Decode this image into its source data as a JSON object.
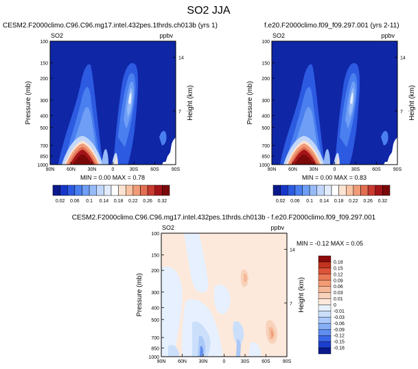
{
  "figure": {
    "title": "SO2 JJA"
  },
  "colors": {
    "blue_scale": [
      "#0a1a8c",
      "#1736c8",
      "#2c5ae0",
      "#4a7ff0",
      "#6e9ef5",
      "#97bbf8",
      "#c2d7fb",
      "#e3ecfd",
      "#ffffff"
    ],
    "warm_scale": [
      "#fde4d2",
      "#f8c3a3",
      "#f09c78",
      "#e26f52",
      "#c93a2f",
      "#a31418",
      "#7a0a0a"
    ],
    "diff_blue": [
      "#0a1a8c",
      "#1d3fd0",
      "#3a67e6",
      "#5f8df0",
      "#86aef5",
      "#aac8f8",
      "#cbdffb",
      "#e6f0fe"
    ],
    "diff_red": [
      "#fde9db",
      "#f8d2bb",
      "#f5b797",
      "#f19a74",
      "#ea7a55",
      "#dc5438",
      "#c2321f",
      "#8c0b0b"
    ]
  },
  "chart_data": [
    {
      "type": "heatmap",
      "panel": "top-left",
      "title": "CESM2.F2000climo.C96.C96.mg17.intel.432pes.1thrds.ch013b (yrs 1)",
      "variable": "SO2",
      "units": "ppbv",
      "ylabel": "Pressure (mb)",
      "ylabel_right": "Height (km)",
      "x_ticks": [
        "90N",
        "60N",
        "30N",
        "0",
        "30S",
        "60S",
        "90S"
      ],
      "y_ticks": [
        100,
        150,
        200,
        300,
        400,
        500,
        700,
        850,
        1000
      ],
      "y_right_ticks": [
        14,
        7
      ],
      "ylim": [
        1000,
        100
      ],
      "y_scale": "log",
      "grid": false,
      "stats": "MIN =   0.00   MAX =   0.78",
      "colorbar_labels": [
        "0.02",
        "0.06",
        "0.1",
        "0.14",
        "0.18",
        "0.22",
        "0.26",
        "0.32"
      ]
    },
    {
      "type": "heatmap",
      "panel": "top-right",
      "title": "f.e20.F2000climo.f09_f09.297.001 (yrs 2-11)",
      "variable": "SO2",
      "units": "ppbv",
      "ylabel": "Pressure (mb)",
      "ylabel_right": "Height (km)",
      "x_ticks": [
        "90N",
        "60N",
        "30N",
        "0",
        "30S",
        "60S",
        "90S"
      ],
      "y_ticks": [
        100,
        150,
        200,
        300,
        400,
        500,
        700,
        850,
        1000
      ],
      "y_right_ticks": [
        14,
        7
      ],
      "ylim": [
        1000,
        100
      ],
      "y_scale": "log",
      "grid": false,
      "stats": "MIN =   0.00   MAX =   0.83",
      "colorbar_labels": [
        "0.02",
        "0.06",
        "0.1",
        "0.14",
        "0.18",
        "0.22",
        "0.26",
        "0.32"
      ]
    },
    {
      "type": "heatmap",
      "panel": "bottom",
      "title": "CESM2.F2000climo.C96.C96.mg17.intel.432pes.1thrds.ch013b - f.e20.F2000climo.f09_f09.297.001",
      "variable": "SO2",
      "units": "ppbv",
      "ylabel": "Pressure (mb)",
      "ylabel_right": "Height (km)",
      "x_ticks": [
        "90N",
        "60N",
        "30N",
        "0",
        "30S",
        "60S",
        "90S"
      ],
      "y_ticks": [
        100,
        150,
        200,
        300,
        400,
        500,
        700,
        850,
        1000
      ],
      "y_right_ticks": [
        14,
        7
      ],
      "ylim": [
        1000,
        100
      ],
      "y_scale": "log",
      "grid": false,
      "stats": "MIN =  -0.12   MAX =   0.05",
      "colorbar_labels": [
        "0.18",
        "0.15",
        "0.12",
        "0.09",
        "0.06",
        "0.03",
        "0.01",
        "0",
        "-0.01",
        "-0.03",
        "-0.06",
        "-0.09",
        "-0.12",
        "-0.15",
        "-0.18"
      ]
    }
  ]
}
